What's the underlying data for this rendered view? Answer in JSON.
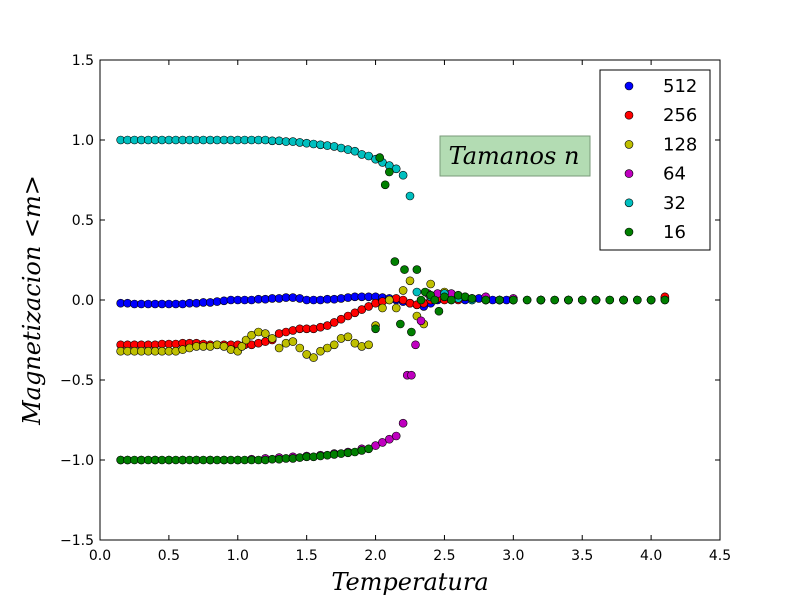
{
  "chart_data": {
    "type": "scatter",
    "title": "",
    "xlabel": "Temperatura",
    "ylabel": "Magnetizacion <m>",
    "xlim": [
      0.0,
      4.5
    ],
    "ylim": [
      -1.5,
      1.5
    ],
    "x_ticks": [
      0.0,
      0.5,
      1.0,
      1.5,
      2.0,
      2.5,
      3.0,
      3.5,
      4.0,
      4.5
    ],
    "y_ticks": [
      -1.5,
      -1.0,
      -0.5,
      0.0,
      0.5,
      1.0,
      1.5
    ],
    "x_tick_labels": [
      "0.0",
      "0.5",
      "1.0",
      "1.5",
      "2.0",
      "2.5",
      "3.0",
      "3.5",
      "4.0",
      "4.5"
    ],
    "y_tick_labels": [
      "−1.5",
      "−1.0",
      "−0.5",
      "0.0",
      "0.5",
      "1.0",
      "1.5"
    ],
    "grid": false,
    "legend_position": "top-right",
    "annotation": "Tamanos n",
    "series": [
      {
        "name": "512",
        "color": "#0000ff",
        "x": [
          0.15,
          0.2,
          0.25,
          0.3,
          0.35,
          0.4,
          0.45,
          0.5,
          0.55,
          0.6,
          0.65,
          0.7,
          0.75,
          0.8,
          0.85,
          0.9,
          0.95,
          1.0,
          1.05,
          1.1,
          1.15,
          1.2,
          1.25,
          1.3,
          1.35,
          1.4,
          1.45,
          1.5,
          1.55,
          1.6,
          1.65,
          1.7,
          1.75,
          1.8,
          1.85,
          1.9,
          1.95,
          2.0,
          2.05,
          2.1,
          2.15,
          2.2,
          2.25,
          2.3,
          2.35,
          2.4,
          2.45,
          2.5,
          2.55,
          2.6,
          2.65,
          2.7,
          2.75,
          2.8,
          2.85,
          2.9,
          2.95,
          3.0,
          3.1,
          3.2,
          3.3,
          3.4,
          3.5,
          3.6,
          3.7,
          3.8,
          3.9,
          4.0,
          4.1
        ],
        "y": [
          -0.02,
          -0.02,
          -0.025,
          -0.025,
          -0.025,
          -0.025,
          -0.025,
          -0.025,
          -0.025,
          -0.025,
          -0.02,
          -0.02,
          -0.015,
          -0.015,
          -0.01,
          -0.005,
          0.0,
          0.0,
          0.0,
          0.0,
          0.005,
          0.005,
          0.01,
          0.01,
          0.015,
          0.015,
          0.01,
          0.0,
          0.0,
          0.0,
          0.005,
          0.005,
          0.01,
          0.015,
          0.02,
          0.02,
          0.02,
          0.02,
          0.015,
          0.01,
          0.0,
          -0.01,
          -0.02,
          -0.03,
          -0.04,
          -0.02,
          0.0,
          0.01,
          0.01,
          0.005,
          0.0,
          0.005,
          0.01,
          0.005,
          0.0,
          0.0,
          0.0,
          0.0,
          0.0,
          0.0,
          0.0,
          0.0,
          0.0,
          0.0,
          0.0,
          0.0,
          0.0,
          0.0,
          0.01
        ]
      },
      {
        "name": "256",
        "color": "#ff0000",
        "x": [
          0.15,
          0.2,
          0.25,
          0.3,
          0.35,
          0.4,
          0.45,
          0.5,
          0.55,
          0.6,
          0.65,
          0.7,
          0.75,
          0.8,
          0.85,
          0.9,
          0.95,
          1.0,
          1.05,
          1.1,
          1.15,
          1.2,
          1.25,
          1.3,
          1.35,
          1.4,
          1.45,
          1.5,
          1.55,
          1.6,
          1.65,
          1.7,
          1.75,
          1.8,
          1.85,
          1.9,
          1.95,
          2.0,
          2.05,
          2.1,
          2.15,
          2.2,
          2.25,
          2.3,
          2.35,
          2.4,
          2.45,
          2.5,
          2.55,
          2.6,
          2.7,
          2.8,
          2.9,
          3.0,
          3.2,
          3.4,
          3.6,
          3.8,
          4.0,
          4.1
        ],
        "y": [
          -0.28,
          -0.28,
          -0.28,
          -0.28,
          -0.28,
          -0.28,
          -0.275,
          -0.275,
          -0.275,
          -0.27,
          -0.27,
          -0.27,
          -0.275,
          -0.28,
          -0.28,
          -0.28,
          -0.28,
          -0.28,
          -0.28,
          -0.28,
          -0.27,
          -0.26,
          -0.25,
          -0.21,
          -0.2,
          -0.19,
          -0.18,
          -0.18,
          -0.18,
          -0.17,
          -0.16,
          -0.14,
          -0.12,
          -0.1,
          -0.08,
          -0.06,
          -0.04,
          -0.02,
          -0.01,
          0.0,
          0.01,
          0.0,
          -0.02,
          -0.03,
          -0.02,
          0.0,
          0.01,
          0.0,
          0.0,
          0.0,
          0.0,
          0.0,
          0.0,
          0.0,
          0.0,
          0.0,
          0.0,
          0.0,
          0.0,
          0.02
        ]
      },
      {
        "name": "128",
        "color": "#bfbf00",
        "x": [
          0.15,
          0.2,
          0.25,
          0.3,
          0.35,
          0.4,
          0.45,
          0.5,
          0.55,
          0.6,
          0.65,
          0.7,
          0.75,
          0.8,
          0.85,
          0.9,
          0.95,
          1.0,
          1.03,
          1.06,
          1.1,
          1.15,
          1.2,
          1.25,
          1.3,
          1.35,
          1.4,
          1.45,
          1.5,
          1.55,
          1.6,
          1.65,
          1.7,
          1.75,
          1.8,
          1.85,
          1.9,
          1.95,
          2.0,
          2.05,
          2.1,
          2.15,
          2.2,
          2.25,
          2.3,
          2.35,
          2.4,
          2.5,
          2.6,
          2.7,
          2.8,
          2.9,
          3.0,
          3.2,
          3.4,
          3.6,
          3.8,
          4.0
        ],
        "y": [
          -0.32,
          -0.32,
          -0.32,
          -0.32,
          -0.32,
          -0.32,
          -0.32,
          -0.32,
          -0.32,
          -0.31,
          -0.3,
          -0.29,
          -0.29,
          -0.29,
          -0.28,
          -0.29,
          -0.31,
          -0.32,
          -0.29,
          -0.25,
          -0.22,
          -0.2,
          -0.21,
          -0.24,
          -0.3,
          -0.27,
          -0.26,
          -0.3,
          -0.34,
          -0.36,
          -0.32,
          -0.3,
          -0.28,
          -0.24,
          -0.23,
          -0.27,
          -0.29,
          -0.28,
          -0.16,
          -0.05,
          0.0,
          -0.05,
          0.06,
          0.12,
          -0.1,
          -0.15,
          0.1,
          0.05,
          0.02,
          0.01,
          0.0,
          0.0,
          0.0,
          0.0,
          0.0,
          0.0,
          0.0,
          0.0
        ]
      },
      {
        "name": "64",
        "color": "#bf00bf",
        "x": [
          0.15,
          0.2,
          0.3,
          0.4,
          0.5,
          0.6,
          0.7,
          0.8,
          0.9,
          1.0,
          1.1,
          1.2,
          1.3,
          1.4,
          1.5,
          1.6,
          1.7,
          1.8,
          1.9,
          2.0,
          2.05,
          2.1,
          2.15,
          2.2,
          2.23,
          2.26,
          2.29,
          2.33,
          2.38,
          2.45,
          2.55,
          2.65,
          2.8,
          3.0,
          3.2,
          3.5,
          3.8,
          4.1
        ],
        "y": [
          -1.0,
          -1.0,
          -1.0,
          -1.0,
          -1.0,
          -1.0,
          -1.0,
          -1.0,
          -1.0,
          -1.0,
          -0.995,
          -0.99,
          -0.985,
          -0.98,
          -0.975,
          -0.97,
          -0.96,
          -0.95,
          -0.93,
          -0.91,
          -0.89,
          -0.87,
          -0.85,
          -0.77,
          -0.47,
          -0.47,
          -0.28,
          -0.13,
          0.04,
          0.04,
          0.04,
          0.02,
          0.02,
          0.01,
          0.0,
          0.0,
          0.0,
          0.0
        ]
      },
      {
        "name": "32",
        "color": "#00bfbf",
        "x": [
          0.15,
          0.2,
          0.25,
          0.3,
          0.35,
          0.4,
          0.45,
          0.5,
          0.55,
          0.6,
          0.65,
          0.7,
          0.75,
          0.8,
          0.85,
          0.9,
          0.95,
          1.0,
          1.05,
          1.1,
          1.15,
          1.2,
          1.25,
          1.3,
          1.35,
          1.4,
          1.45,
          1.5,
          1.55,
          1.6,
          1.65,
          1.7,
          1.75,
          1.8,
          1.85,
          1.9,
          1.95,
          2.0,
          2.05,
          2.1,
          2.15,
          2.2,
          2.25,
          2.3,
          2.4,
          2.5,
          2.6,
          2.7,
          2.8,
          2.9,
          3.0,
          3.2,
          3.4,
          3.6,
          3.8,
          4.0
        ],
        "y": [
          1.0,
          1.0,
          1.0,
          1.0,
          1.0,
          1.0,
          1.0,
          1.0,
          1.0,
          1.0,
          1.0,
          1.0,
          1.0,
          1.0,
          1.0,
          1.0,
          1.0,
          1.0,
          1.0,
          1.0,
          1.0,
          1.0,
          0.995,
          0.995,
          0.99,
          0.99,
          0.985,
          0.98,
          0.975,
          0.97,
          0.965,
          0.96,
          0.95,
          0.94,
          0.93,
          0.91,
          0.9,
          0.88,
          0.86,
          0.84,
          0.82,
          0.78,
          0.65,
          0.05,
          0.02,
          0.04,
          0.01,
          0.0,
          0.0,
          0.0,
          0.0,
          0.0,
          0.0,
          0.0,
          0.0,
          0.0
        ]
      },
      {
        "name": "16",
        "color": "#007f00",
        "x": [
          0.15,
          0.2,
          0.25,
          0.3,
          0.35,
          0.4,
          0.45,
          0.5,
          0.55,
          0.6,
          0.65,
          0.7,
          0.75,
          0.8,
          0.85,
          0.9,
          0.95,
          1.0,
          1.05,
          1.1,
          1.15,
          1.2,
          1.25,
          1.3,
          1.35,
          1.4,
          1.45,
          1.5,
          1.55,
          1.6,
          1.65,
          1.7,
          1.75,
          1.8,
          1.85,
          1.9,
          1.95,
          2.0,
          2.03,
          2.07,
          2.1,
          2.14,
          2.18,
          2.21,
          2.26,
          2.3,
          2.33,
          2.36,
          2.4,
          2.43,
          2.46,
          2.5,
          2.55,
          2.6,
          2.65,
          2.7,
          2.8,
          2.9,
          3.0,
          3.1,
          3.2,
          3.3,
          3.4,
          3.5,
          3.6,
          3.7,
          3.8,
          3.9,
          4.0,
          4.1
        ],
        "y": [
          -1.0,
          -1.0,
          -1.0,
          -1.0,
          -1.0,
          -1.0,
          -1.0,
          -1.0,
          -1.0,
          -1.0,
          -1.0,
          -1.0,
          -1.0,
          -1.0,
          -1.0,
          -1.0,
          -1.0,
          -1.0,
          -1.0,
          -1.0,
          -1.0,
          -1.0,
          -0.995,
          -0.995,
          -0.99,
          -0.99,
          -0.985,
          -0.98,
          -0.98,
          -0.975,
          -0.97,
          -0.965,
          -0.96,
          -0.955,
          -0.95,
          -0.94,
          -0.93,
          -0.18,
          0.89,
          0.72,
          0.8,
          0.24,
          -0.15,
          0.19,
          -0.2,
          0.19,
          0.0,
          0.05,
          0.03,
          0.0,
          -0.07,
          0.02,
          0.0,
          0.03,
          0.02,
          0.01,
          0.0,
          0.0,
          0.0,
          0.0,
          0.0,
          0.0,
          0.0,
          0.0,
          0.0,
          0.0,
          0.0,
          0.0,
          0.0,
          0.0
        ]
      }
    ]
  }
}
